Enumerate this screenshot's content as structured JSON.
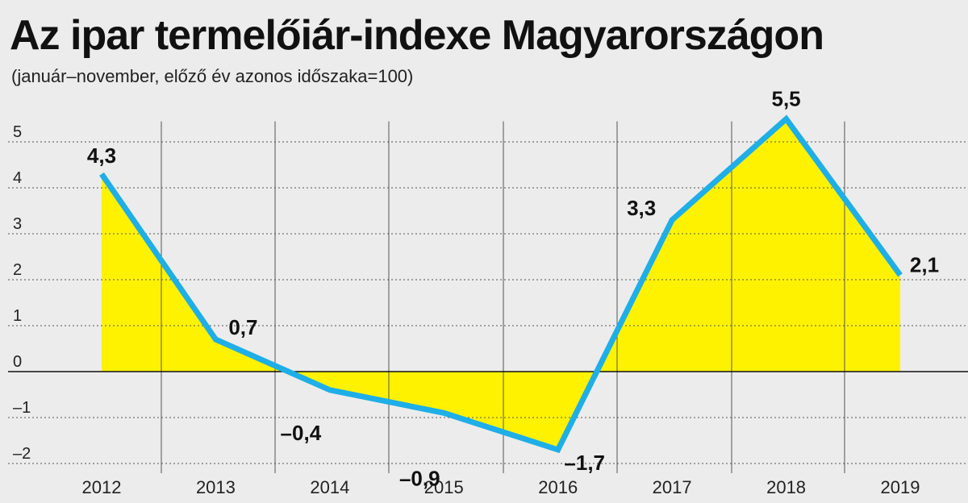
{
  "title": "Az ipar termelőiár-indexe Magyarországon",
  "subtitle": "(január–november, előző év azonos időszaka=100)",
  "colors": {
    "line": "#1eaee8",
    "fill": "#fff200",
    "grid": "#555555",
    "background": "#ececec"
  },
  "chart_data": {
    "type": "area",
    "categories": [
      "2012",
      "2013",
      "2014",
      "2015",
      "2016",
      "2017",
      "2018",
      "2019"
    ],
    "series": [
      {
        "values": [
          4.3,
          0.7,
          -0.4,
          -0.9,
          -1.7,
          3.3,
          5.5,
          2.1
        ]
      }
    ],
    "data_labels": [
      "4,3",
      "0,7",
      "–0,4",
      "–0,9",
      "–1,7",
      "3,3",
      "5,5",
      "2,1"
    ],
    "yticks": [
      5,
      4,
      3,
      2,
      1,
      0,
      -1,
      -2
    ],
    "ytick_labels": [
      "5",
      "4",
      "3",
      "2",
      "1",
      "0",
      "–1",
      "–2"
    ],
    "ylim": [
      -2.2,
      5.5
    ],
    "grid": true
  }
}
